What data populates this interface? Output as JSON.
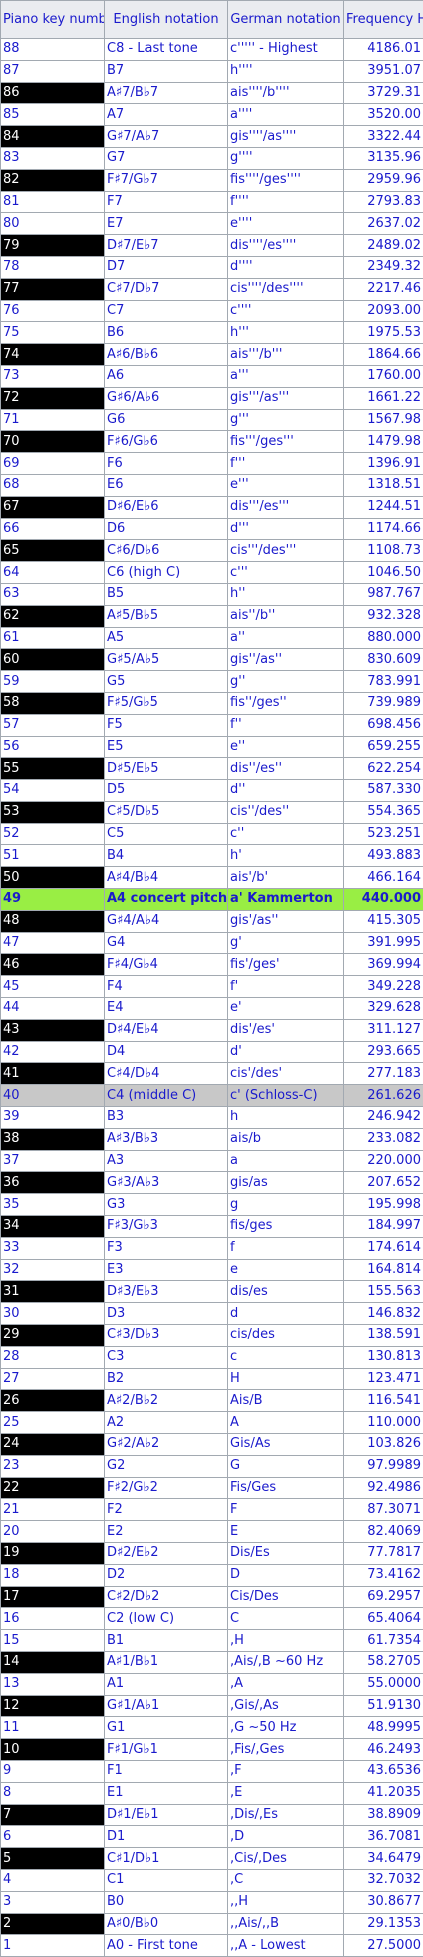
{
  "headers": [
    "Piano key number",
    "English notation",
    "German notation",
    "Frequency Hz"
  ],
  "rows": [
    {
      "key": "88",
      "english": "C8 - Last tone",
      "german": "c''''' - Highest",
      "freq": "4186.01",
      "kind": "white"
    },
    {
      "key": "87",
      "english": "B7",
      "german": "h''''",
      "freq": "3951.07",
      "kind": "white"
    },
    {
      "key": "86",
      "english": "A♯7/B♭7",
      "german": "ais''''/b''''",
      "freq": "3729.31",
      "kind": "black"
    },
    {
      "key": "85",
      "english": "A7",
      "german": "a''''",
      "freq": "3520.00",
      "kind": "white"
    },
    {
      "key": "84",
      "english": "G♯7/A♭7",
      "german": "gis''''/as''''",
      "freq": "3322.44",
      "kind": "black"
    },
    {
      "key": "83",
      "english": "G7",
      "german": "g''''",
      "freq": "3135.96",
      "kind": "white"
    },
    {
      "key": "82",
      "english": "F♯7/G♭7",
      "german": "fis''''/ges''''",
      "freq": "2959.96",
      "kind": "black"
    },
    {
      "key": "81",
      "english": "F7",
      "german": "f''''",
      "freq": "2793.83",
      "kind": "white"
    },
    {
      "key": "80",
      "english": "E7",
      "german": "e''''",
      "freq": "2637.02",
      "kind": "white"
    },
    {
      "key": "79",
      "english": "D♯7/E♭7",
      "german": "dis''''/es''''",
      "freq": "2489.02",
      "kind": "black"
    },
    {
      "key": "78",
      "english": "D7",
      "german": "d''''",
      "freq": "2349.32",
      "kind": "white"
    },
    {
      "key": "77",
      "english": "C♯7/D♭7",
      "german": "cis''''/des''''",
      "freq": "2217.46",
      "kind": "black"
    },
    {
      "key": "76",
      "english": "C7",
      "german": "c''''",
      "freq": "2093.00",
      "kind": "white"
    },
    {
      "key": "75",
      "english": "B6",
      "german": "h'''",
      "freq": "1975.53",
      "kind": "white"
    },
    {
      "key": "74",
      "english": "A♯6/B♭6",
      "german": "ais'''/b'''",
      "freq": "1864.66",
      "kind": "black"
    },
    {
      "key": "73",
      "english": "A6",
      "german": "a'''",
      "freq": "1760.00",
      "kind": "white"
    },
    {
      "key": "72",
      "english": "G♯6/A♭6",
      "german": "gis'''/as'''",
      "freq": "1661.22",
      "kind": "black"
    },
    {
      "key": "71",
      "english": "G6",
      "german": "g'''",
      "freq": "1567.98",
      "kind": "white"
    },
    {
      "key": "70",
      "english": "F♯6/G♭6",
      "german": "fis'''/ges'''",
      "freq": "1479.98",
      "kind": "black"
    },
    {
      "key": "69",
      "english": "F6",
      "german": "f'''",
      "freq": "1396.91",
      "kind": "white"
    },
    {
      "key": "68",
      "english": "E6",
      "german": "e'''",
      "freq": "1318.51",
      "kind": "white"
    },
    {
      "key": "67",
      "english": "D♯6/E♭6",
      "german": "dis'''/es'''",
      "freq": "1244.51",
      "kind": "black"
    },
    {
      "key": "66",
      "english": "D6",
      "german": "d'''",
      "freq": "1174.66",
      "kind": "white"
    },
    {
      "key": "65",
      "english": "C♯6/D♭6",
      "german": "cis'''/des'''",
      "freq": "1108.73",
      "kind": "black"
    },
    {
      "key": "64",
      "english": "C6 (high C)",
      "german": "c'''",
      "freq": "1046.50",
      "kind": "white"
    },
    {
      "key": "63",
      "english": "B5",
      "german": "h''",
      "freq": "987.767",
      "kind": "white"
    },
    {
      "key": "62",
      "english": "A♯5/B♭5",
      "german": "ais''/b''",
      "freq": "932.328",
      "kind": "black"
    },
    {
      "key": "61",
      "english": "A5",
      "german": "a''",
      "freq": "880.000",
      "kind": "white"
    },
    {
      "key": "60",
      "english": "G♯5/A♭5",
      "german": "gis''/as''",
      "freq": "830.609",
      "kind": "black"
    },
    {
      "key": "59",
      "english": "G5",
      "german": "g''",
      "freq": "783.991",
      "kind": "white"
    },
    {
      "key": "58",
      "english": "F♯5/G♭5",
      "german": "fis''/ges''",
      "freq": "739.989",
      "kind": "black"
    },
    {
      "key": "57",
      "english": "F5",
      "german": "f''",
      "freq": "698.456",
      "kind": "white"
    },
    {
      "key": "56",
      "english": "E5",
      "german": "e''",
      "freq": "659.255",
      "kind": "white"
    },
    {
      "key": "55",
      "english": "D♯5/E♭5",
      "german": "dis''/es''",
      "freq": "622.254",
      "kind": "black"
    },
    {
      "key": "54",
      "english": "D5",
      "german": "d''",
      "freq": "587.330",
      "kind": "white"
    },
    {
      "key": "53",
      "english": "C♯5/D♭5",
      "german": "cis''/des''",
      "freq": "554.365",
      "kind": "black"
    },
    {
      "key": "52",
      "english": "C5",
      "german": "c''",
      "freq": "523.251",
      "kind": "white"
    },
    {
      "key": "51",
      "english": "B4",
      "german": "h'",
      "freq": "493.883",
      "kind": "white"
    },
    {
      "key": "50",
      "english": "A♯4/B♭4",
      "german": "ais'/b'",
      "freq": "466.164",
      "kind": "black"
    },
    {
      "key": "49",
      "english": "A4 concert pitch",
      "german": "a' Kammerton",
      "freq": "440.000",
      "kind": "concert"
    },
    {
      "key": "48",
      "english": "G♯4/A♭4",
      "german": "gis'/as''",
      "freq": "415.305",
      "kind": "black"
    },
    {
      "key": "47",
      "english": "G4",
      "german": "g'",
      "freq": "391.995",
      "kind": "white"
    },
    {
      "key": "46",
      "english": "F♯4/G♭4",
      "german": "fis'/ges'",
      "freq": "369.994",
      "kind": "black"
    },
    {
      "key": "45",
      "english": "F4",
      "german": "f'",
      "freq": "349.228",
      "kind": "white"
    },
    {
      "key": "44",
      "english": "E4",
      "german": "e'",
      "freq": "329.628",
      "kind": "white"
    },
    {
      "key": "43",
      "english": "D♯4/E♭4",
      "german": "dis'/es'",
      "freq": "311.127",
      "kind": "black"
    },
    {
      "key": "42",
      "english": "D4",
      "german": "d'",
      "freq": "293.665",
      "kind": "white"
    },
    {
      "key": "41",
      "english": "C♯4/D♭4",
      "german": "cis'/des'",
      "freq": "277.183",
      "kind": "black"
    },
    {
      "key": "40",
      "english": "C4 (middle C)",
      "german": "c' (Schloss-C)",
      "freq": "261.626",
      "kind": "middle"
    },
    {
      "key": "39",
      "english": "B3",
      "german": "h",
      "freq": "246.942",
      "kind": "white"
    },
    {
      "key": "38",
      "english": "A♯3/B♭3",
      "german": "ais/b",
      "freq": "233.082",
      "kind": "black"
    },
    {
      "key": "37",
      "english": "A3",
      "german": "a",
      "freq": "220.000",
      "kind": "white"
    },
    {
      "key": "36",
      "english": "G♯3/A♭3",
      "german": "gis/as",
      "freq": "207.652",
      "kind": "black"
    },
    {
      "key": "35",
      "english": "G3",
      "german": "g",
      "freq": "195.998",
      "kind": "white"
    },
    {
      "key": "34",
      "english": "F♯3/G♭3",
      "german": "fis/ges",
      "freq": "184.997",
      "kind": "black"
    },
    {
      "key": "33",
      "english": "F3",
      "german": "f",
      "freq": "174.614",
      "kind": "white"
    },
    {
      "key": "32",
      "english": "E3",
      "german": "e",
      "freq": "164.814",
      "kind": "white"
    },
    {
      "key": "31",
      "english": "D♯3/E♭3",
      "german": "dis/es",
      "freq": "155.563",
      "kind": "black"
    },
    {
      "key": "30",
      "english": "D3",
      "german": "d",
      "freq": "146.832",
      "kind": "white"
    },
    {
      "key": "29",
      "english": "C♯3/D♭3",
      "german": "cis/des",
      "freq": "138.591",
      "kind": "black"
    },
    {
      "key": "28",
      "english": "C3",
      "german": "c",
      "freq": "130.813",
      "kind": "white"
    },
    {
      "key": "27",
      "english": "B2",
      "german": "H",
      "freq": "123.471",
      "kind": "white"
    },
    {
      "key": "26",
      "english": "A♯2/B♭2",
      "german": "Ais/B",
      "freq": "116.541",
      "kind": "black"
    },
    {
      "key": "25",
      "english": "A2",
      "german": "A",
      "freq": "110.000",
      "kind": "white"
    },
    {
      "key": "24",
      "english": "G♯2/A♭2",
      "german": "Gis/As",
      "freq": "103.826",
      "kind": "black"
    },
    {
      "key": "23",
      "english": "G2",
      "german": "G",
      "freq": "97.9989",
      "kind": "white"
    },
    {
      "key": "22",
      "english": "F♯2/G♭2",
      "german": "Fis/Ges",
      "freq": "92.4986",
      "kind": "black"
    },
    {
      "key": "21",
      "english": "F2",
      "german": "F",
      "freq": "87.3071",
      "kind": "white"
    },
    {
      "key": "20",
      "english": "E2",
      "german": "E",
      "freq": "82.4069",
      "kind": "white"
    },
    {
      "key": "19",
      "english": "D♯2/E♭2",
      "german": "Dis/Es",
      "freq": "77.7817",
      "kind": "black"
    },
    {
      "key": "18",
      "english": "D2",
      "german": "D",
      "freq": "73.4162",
      "kind": "white"
    },
    {
      "key": "17",
      "english": "C♯2/D♭2",
      "german": "Cis/Des",
      "freq": "69.2957",
      "kind": "black"
    },
    {
      "key": "16",
      "english": "C2 (low C)",
      "german": "C",
      "freq": "65.4064",
      "kind": "white"
    },
    {
      "key": "15",
      "english": "B1",
      "german": ",H",
      "freq": "61.7354",
      "kind": "white"
    },
    {
      "key": "14",
      "english": "A♯1/B♭1",
      "german": ",Ais/,B     ~60 Hz",
      "freq": "58.2705",
      "kind": "black"
    },
    {
      "key": "13",
      "english": "A1",
      "german": ",A",
      "freq": "55.0000",
      "kind": "white"
    },
    {
      "key": "12",
      "english": "G♯1/A♭1",
      "german": ",Gis/,As",
      "freq": "51.9130",
      "kind": "black"
    },
    {
      "key": "11",
      "english": "G1",
      "german": ",G           ~50 Hz",
      "freq": "48.9995",
      "kind": "white"
    },
    {
      "key": "10",
      "english": "F♯1/G♭1",
      "german": ",Fis/,Ges",
      "freq": "46.2493",
      "kind": "black"
    },
    {
      "key": "9",
      "english": "F1",
      "german": ",F",
      "freq": "43.6536",
      "kind": "white"
    },
    {
      "key": "8",
      "english": "E1",
      "german": ",E",
      "freq": "41.2035",
      "kind": "white"
    },
    {
      "key": "7",
      "english": "D♯1/E♭1",
      "german": ",Dis/,Es",
      "freq": "38.8909",
      "kind": "black"
    },
    {
      "key": "6",
      "english": "D1",
      "german": ",D",
      "freq": "36.7081",
      "kind": "white"
    },
    {
      "key": "5",
      "english": "C♯1/D♭1",
      "german": ",Cis/,Des",
      "freq": "34.6479",
      "kind": "black"
    },
    {
      "key": "4",
      "english": "C1",
      "german": ",C",
      "freq": "32.7032",
      "kind": "white"
    },
    {
      "key": "3",
      "english": "B0",
      "german": ",,H",
      "freq": "30.8677",
      "kind": "white"
    },
    {
      "key": "2",
      "english": "A♯0/B♭0",
      "german": ",,Ais/,,B",
      "freq": "29.1353",
      "kind": "black"
    },
    {
      "key": "1",
      "english": "A0 - First tone",
      "german": ",,A - Lowest",
      "freq": "27.5000",
      "kind": "white"
    }
  ],
  "colors": {
    "text": "#1a1acc",
    "header_bg": "#eaecf0",
    "black_key_bg": "#000000",
    "black_key_text": "#ffffff",
    "concert_bg": "#99ee44",
    "middle_c_bg": "#c8c8c8",
    "border": "#a2a9b1"
  }
}
